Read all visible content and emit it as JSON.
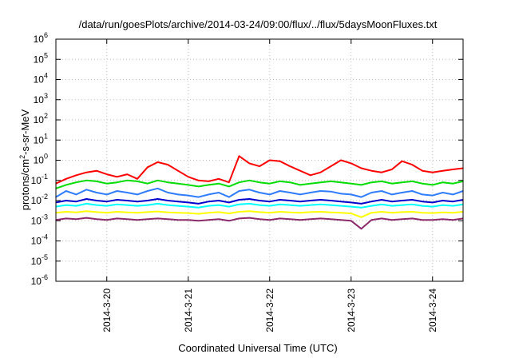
{
  "chart_data": {
    "type": "line",
    "title": "/data/run/goesPlots/archive/2014-03-24/09:00/flux/../flux/5daysMoonFluxes.txt",
    "xlabel": "Coordinated Universal Time (UTC)",
    "ylabel_parts": [
      "protons/cm",
      "2",
      "-s-sr-MeV"
    ],
    "yscale": "log",
    "ylim": [
      1e-06,
      1000000.0
    ],
    "y_ticks": [
      {
        "base": "10",
        "exp": "-6",
        "value": 1e-06
      },
      {
        "base": "10",
        "exp": "-5",
        "value": 1e-05
      },
      {
        "base": "10",
        "exp": "-4",
        "value": 0.0001
      },
      {
        "base": "10",
        "exp": "-3",
        "value": 0.001
      },
      {
        "base": "10",
        "exp": "-2",
        "value": 0.01
      },
      {
        "base": "10",
        "exp": "-1",
        "value": 0.1
      },
      {
        "base": "10",
        "exp": "0",
        "value": 1
      },
      {
        "base": "10",
        "exp": "1",
        "value": 10
      },
      {
        "base": "10",
        "exp": "2",
        "value": 100
      },
      {
        "base": "10",
        "exp": "3",
        "value": 1000
      },
      {
        "base": "10",
        "exp": "4",
        "value": 10000
      },
      {
        "base": "10",
        "exp": "5",
        "value": 100000
      },
      {
        "base": "10",
        "exp": "6",
        "value": 1000000
      }
    ],
    "xlim": [
      "2014-03-19T09:00",
      "2014-03-24T09:00"
    ],
    "x_ticks": [
      {
        "label": "2014-3-20",
        "value": "2014-03-20T00:00"
      },
      {
        "label": "2014-3-21",
        "value": "2014-03-21T00:00"
      },
      {
        "label": "2014-3-22",
        "value": "2014-03-22T00:00"
      },
      {
        "label": "2014-3-23",
        "value": "2014-03-23T00:00"
      },
      {
        "label": "2014-3-24",
        "value": "2014-03-24T00:00"
      }
    ],
    "grid": true,
    "x": [
      "2014-03-19T09:00",
      "2014-03-19T12:00",
      "2014-03-19T15:00",
      "2014-03-19T18:00",
      "2014-03-19T21:00",
      "2014-03-20T00:00",
      "2014-03-20T03:00",
      "2014-03-20T06:00",
      "2014-03-20T09:00",
      "2014-03-20T12:00",
      "2014-03-20T15:00",
      "2014-03-20T18:00",
      "2014-03-20T21:00",
      "2014-03-21T00:00",
      "2014-03-21T03:00",
      "2014-03-21T06:00",
      "2014-03-21T09:00",
      "2014-03-21T12:00",
      "2014-03-21T15:00",
      "2014-03-21T18:00",
      "2014-03-21T21:00",
      "2014-03-22T00:00",
      "2014-03-22T03:00",
      "2014-03-22T06:00",
      "2014-03-22T09:00",
      "2014-03-22T12:00",
      "2014-03-22T15:00",
      "2014-03-22T18:00",
      "2014-03-22T21:00",
      "2014-03-23T00:00",
      "2014-03-23T03:00",
      "2014-03-23T06:00",
      "2014-03-23T09:00",
      "2014-03-23T12:00",
      "2014-03-23T15:00",
      "2014-03-23T18:00",
      "2014-03-23T21:00",
      "2014-03-24T00:00",
      "2014-03-24T03:00",
      "2014-03-24T06:00",
      "2014-03-24T09:00"
    ],
    "series": [
      {
        "color": "#ff0000",
        "values": [
          0.07,
          0.12,
          0.18,
          0.25,
          0.3,
          0.2,
          0.15,
          0.2,
          0.12,
          0.45,
          0.8,
          0.6,
          0.3,
          0.15,
          0.1,
          0.09,
          0.12,
          0.08,
          1.6,
          0.7,
          0.5,
          1.0,
          0.9,
          0.5,
          0.3,
          0.18,
          0.25,
          0.5,
          1.0,
          0.7,
          0.4,
          0.3,
          0.25,
          0.35,
          0.9,
          0.6,
          0.3,
          0.25,
          0.3,
          0.35,
          0.4
        ]
      },
      {
        "color": "#00dd00",
        "values": [
          0.04,
          0.06,
          0.08,
          0.1,
          0.09,
          0.07,
          0.08,
          0.1,
          0.09,
          0.07,
          0.1,
          0.08,
          0.07,
          0.06,
          0.05,
          0.06,
          0.07,
          0.05,
          0.08,
          0.1,
          0.08,
          0.07,
          0.09,
          0.08,
          0.06,
          0.07,
          0.08,
          0.09,
          0.08,
          0.07,
          0.06,
          0.08,
          0.09,
          0.07,
          0.08,
          0.09,
          0.07,
          0.06,
          0.08,
          0.07,
          0.09
        ]
      },
      {
        "color": "#2f7cff",
        "values": [
          0.015,
          0.03,
          0.02,
          0.035,
          0.025,
          0.02,
          0.03,
          0.025,
          0.02,
          0.03,
          0.04,
          0.025,
          0.02,
          0.018,
          0.015,
          0.02,
          0.025,
          0.015,
          0.03,
          0.035,
          0.025,
          0.02,
          0.03,
          0.025,
          0.02,
          0.025,
          0.03,
          0.028,
          0.022,
          0.02,
          0.015,
          0.025,
          0.03,
          0.02,
          0.025,
          0.03,
          0.02,
          0.018,
          0.025,
          0.02,
          0.03
        ]
      },
      {
        "color": "#0000cc",
        "values": [
          0.008,
          0.01,
          0.009,
          0.012,
          0.01,
          0.009,
          0.011,
          0.01,
          0.009,
          0.01,
          0.012,
          0.01,
          0.009,
          0.008,
          0.007,
          0.009,
          0.01,
          0.008,
          0.011,
          0.012,
          0.01,
          0.009,
          0.011,
          0.01,
          0.009,
          0.01,
          0.011,
          0.01,
          0.009,
          0.008,
          0.007,
          0.009,
          0.011,
          0.009,
          0.01,
          0.011,
          0.009,
          0.008,
          0.01,
          0.009,
          0.011
        ]
      },
      {
        "color": "#00ffff",
        "values": [
          0.005,
          0.006,
          0.0055,
          0.007,
          0.006,
          0.0055,
          0.0065,
          0.006,
          0.0055,
          0.006,
          0.007,
          0.006,
          0.0055,
          0.005,
          0.0045,
          0.0055,
          0.006,
          0.005,
          0.0065,
          0.007,
          0.006,
          0.0055,
          0.0065,
          0.006,
          0.0055,
          0.006,
          0.0065,
          0.006,
          0.0055,
          0.005,
          0.0045,
          0.0055,
          0.0065,
          0.0055,
          0.006,
          0.0065,
          0.0055,
          0.005,
          0.006,
          0.0055,
          0.0065
        ]
      },
      {
        "color": "#ffff00",
        "values": [
          0.0025,
          0.0028,
          0.0026,
          0.003,
          0.0027,
          0.0025,
          0.0028,
          0.0026,
          0.0025,
          0.0027,
          0.0029,
          0.0026,
          0.0025,
          0.0024,
          0.0022,
          0.0025,
          0.0027,
          0.0023,
          0.0028,
          0.003,
          0.0027,
          0.0025,
          0.0028,
          0.0026,
          0.0025,
          0.0027,
          0.0028,
          0.0026,
          0.0025,
          0.0023,
          0.0015,
          0.0025,
          0.0028,
          0.0025,
          0.0027,
          0.0028,
          0.0025,
          0.0024,
          0.0026,
          0.0025,
          0.0028
        ]
      },
      {
        "color": "#8b2a6b",
        "values": [
          0.0011,
          0.0013,
          0.0012,
          0.0014,
          0.0012,
          0.0011,
          0.0013,
          0.0012,
          0.0011,
          0.0012,
          0.0013,
          0.0012,
          0.0011,
          0.0011,
          0.001,
          0.0011,
          0.0012,
          0.001,
          0.0013,
          0.0014,
          0.0012,
          0.0011,
          0.0013,
          0.0012,
          0.0011,
          0.0012,
          0.0013,
          0.0012,
          0.0011,
          0.001,
          0.0004,
          0.0011,
          0.0013,
          0.0011,
          0.0012,
          0.0013,
          0.0011,
          0.0011,
          0.0012,
          0.0011,
          0.0013
        ]
      }
    ]
  }
}
